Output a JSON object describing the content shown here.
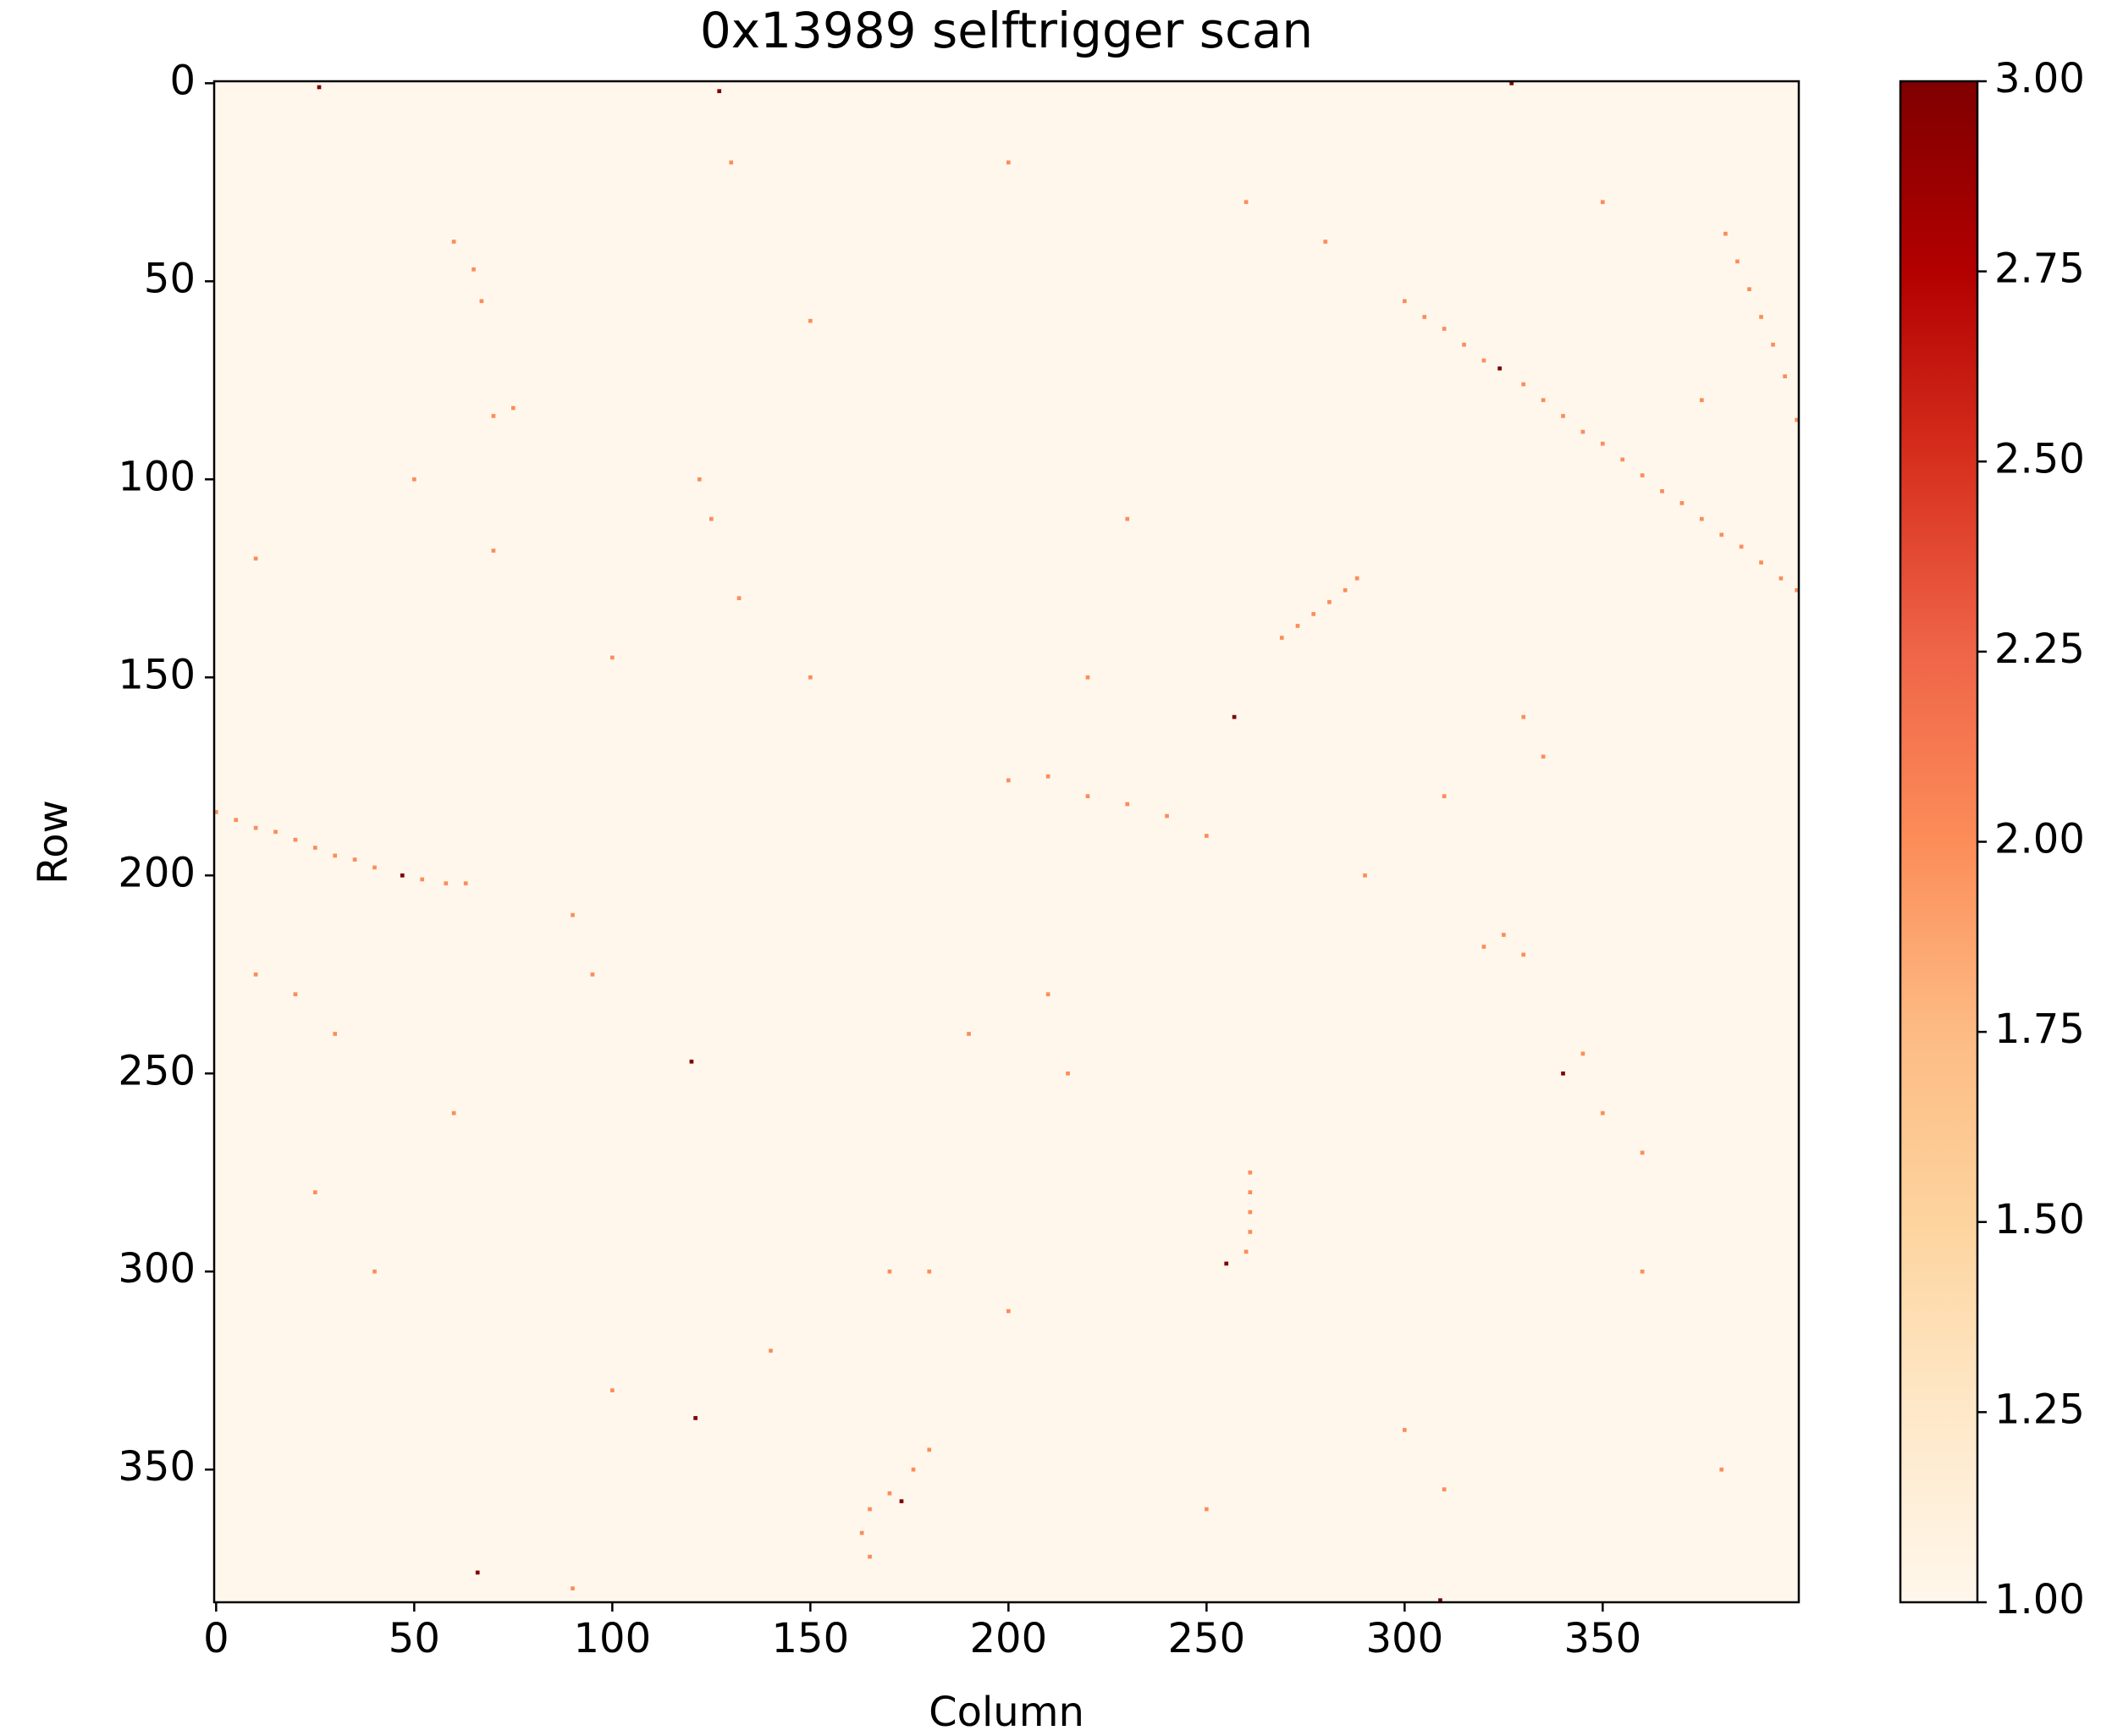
{
  "chart_data": {
    "type": "heatmap",
    "title": "0x13989 selftrigger scan",
    "x_label": "Column",
    "y_label": "Row",
    "xlim": [
      -0.5,
      399.5
    ],
    "xticks": [
      0,
      50,
      100,
      150,
      200,
      250,
      300,
      350
    ],
    "ylim": [
      383.5,
      -0.5
    ],
    "yticks": [
      0,
      50,
      100,
      150,
      200,
      250,
      300,
      350
    ],
    "clim": [
      1,
      3
    ],
    "cticks": [
      {
        "value": 1,
        "label": "1.00"
      },
      {
        "value": 1.25,
        "label": "1.25"
      },
      {
        "value": 1.5,
        "label": "1.50"
      },
      {
        "value": 1.75,
        "label": "1.75"
      },
      {
        "value": 2,
        "label": "2.00"
      },
      {
        "value": 2.25,
        "label": "2.25"
      },
      {
        "value": 2.5,
        "label": "2.50"
      },
      {
        "value": 2.75,
        "label": "2.75"
      },
      {
        "value": 3,
        "label": "3.00"
      }
    ],
    "colormap": [
      "#fff7ec",
      "#fee8c8",
      "#fdd49e",
      "#fdbb84",
      "#fc8d59",
      "#ef6548",
      "#d7301f",
      "#b30000",
      "#7f0000"
    ],
    "hits": [
      [
        300,
        55,
        2
      ],
      [
        305,
        59,
        2
      ],
      [
        310,
        62,
        2
      ],
      [
        315,
        66,
        2
      ],
      [
        320,
        70,
        2
      ],
      [
        324,
        72,
        3
      ],
      [
        330,
        76,
        2
      ],
      [
        335,
        80,
        2
      ],
      [
        340,
        84,
        2
      ],
      [
        345,
        88,
        2
      ],
      [
        350,
        91,
        2
      ],
      [
        355,
        95,
        2
      ],
      [
        360,
        99,
        2
      ],
      [
        365,
        103,
        2
      ],
      [
        370,
        106,
        2
      ],
      [
        375,
        110,
        2
      ],
      [
        380,
        114,
        2
      ],
      [
        385,
        117,
        2
      ],
      [
        390,
        121,
        2
      ],
      [
        395,
        125,
        2
      ],
      [
        399,
        128,
        2
      ],
      [
        0,
        184,
        2
      ],
      [
        5,
        186,
        2
      ],
      [
        10,
        188,
        2
      ],
      [
        15,
        189,
        2
      ],
      [
        20,
        191,
        2
      ],
      [
        25,
        193,
        2
      ],
      [
        30,
        195,
        2
      ],
      [
        35,
        196,
        2
      ],
      [
        40,
        198,
        2
      ],
      [
        47,
        200,
        3
      ],
      [
        52,
        201,
        2
      ],
      [
        58,
        202,
        2
      ],
      [
        63,
        202,
        2
      ],
      [
        381,
        38,
        2
      ],
      [
        384,
        45,
        2
      ],
      [
        387,
        52,
        2
      ],
      [
        390,
        59,
        2
      ],
      [
        393,
        66,
        2
      ],
      [
        396,
        74,
        2
      ],
      [
        399,
        85,
        2
      ],
      [
        261,
        275,
        2
      ],
      [
        261,
        280,
        2
      ],
      [
        261,
        285,
        2
      ],
      [
        261,
        290,
        2
      ],
      [
        260,
        295,
        2
      ],
      [
        255,
        298,
        3
      ],
      [
        269,
        140,
        2
      ],
      [
        273,
        137,
        2
      ],
      [
        277,
        134,
        2
      ],
      [
        281,
        131,
        2
      ],
      [
        285,
        128,
        2
      ],
      [
        288,
        125,
        2
      ],
      [
        26,
        1,
        3
      ],
      [
        127,
        2,
        3
      ],
      [
        327,
        0,
        3
      ],
      [
        257,
        160,
        3
      ],
      [
        120,
        247,
        3
      ],
      [
        340,
        250,
        3
      ],
      [
        66,
        376,
        3
      ],
      [
        309,
        383,
        3
      ],
      [
        121,
        337,
        3
      ],
      [
        173,
        358,
        3
      ],
      [
        165,
        372,
        2
      ],
      [
        163,
        366,
        2
      ],
      [
        165,
        360,
        2
      ],
      [
        170,
        356,
        2
      ],
      [
        176,
        350,
        2
      ],
      [
        180,
        345,
        2
      ],
      [
        60,
        40,
        2
      ],
      [
        65,
        47,
        2
      ],
      [
        67,
        55,
        2
      ],
      [
        75,
        82,
        2
      ],
      [
        70,
        84,
        2
      ],
      [
        122,
        100,
        2
      ],
      [
        125,
        110,
        2
      ],
      [
        70,
        118,
        2
      ],
      [
        100,
        145,
        2
      ],
      [
        132,
        130,
        2
      ],
      [
        150,
        150,
        2
      ],
      [
        200,
        176,
        2
      ],
      [
        210,
        175,
        2
      ],
      [
        220,
        180,
        2
      ],
      [
        230,
        182,
        2
      ],
      [
        240,
        185,
        2
      ],
      [
        250,
        190,
        2
      ],
      [
        210,
        230,
        2
      ],
      [
        215,
        250,
        2
      ],
      [
        190,
        240,
        2
      ],
      [
        330,
        220,
        2
      ],
      [
        325,
        215,
        2
      ],
      [
        320,
        218,
        2
      ],
      [
        345,
        245,
        2
      ],
      [
        350,
        260,
        2
      ],
      [
        360,
        270,
        2
      ],
      [
        30,
        240,
        2
      ],
      [
        20,
        230,
        2
      ],
      [
        10,
        225,
        2
      ],
      [
        25,
        280,
        2
      ],
      [
        40,
        300,
        2
      ],
      [
        100,
        330,
        2
      ],
      [
        140,
        320,
        2
      ],
      [
        180,
        300,
        2
      ],
      [
        200,
        310,
        2
      ],
      [
        300,
        340,
        2
      ],
      [
        310,
        355,
        2
      ],
      [
        330,
        160,
        2
      ],
      [
        335,
        170,
        2
      ],
      [
        375,
        80,
        2
      ],
      [
        60,
        260,
        2
      ],
      [
        90,
        210,
        2
      ],
      [
        95,
        225,
        2
      ],
      [
        150,
        60,
        2
      ],
      [
        230,
        110,
        2
      ],
      [
        280,
        40,
        2
      ],
      [
        220,
        150,
        2
      ],
      [
        290,
        200,
        2
      ],
      [
        310,
        180,
        2
      ],
      [
        170,
        300,
        2
      ],
      [
        50,
        100,
        2
      ],
      [
        10,
        120,
        2
      ],
      [
        360,
        300,
        2
      ],
      [
        380,
        350,
        2
      ],
      [
        250,
        360,
        2
      ],
      [
        90,
        380,
        2
      ],
      [
        130,
        20,
        2
      ],
      [
        200,
        20,
        2
      ],
      [
        260,
        30,
        2
      ],
      [
        350,
        30,
        2
      ]
    ]
  }
}
